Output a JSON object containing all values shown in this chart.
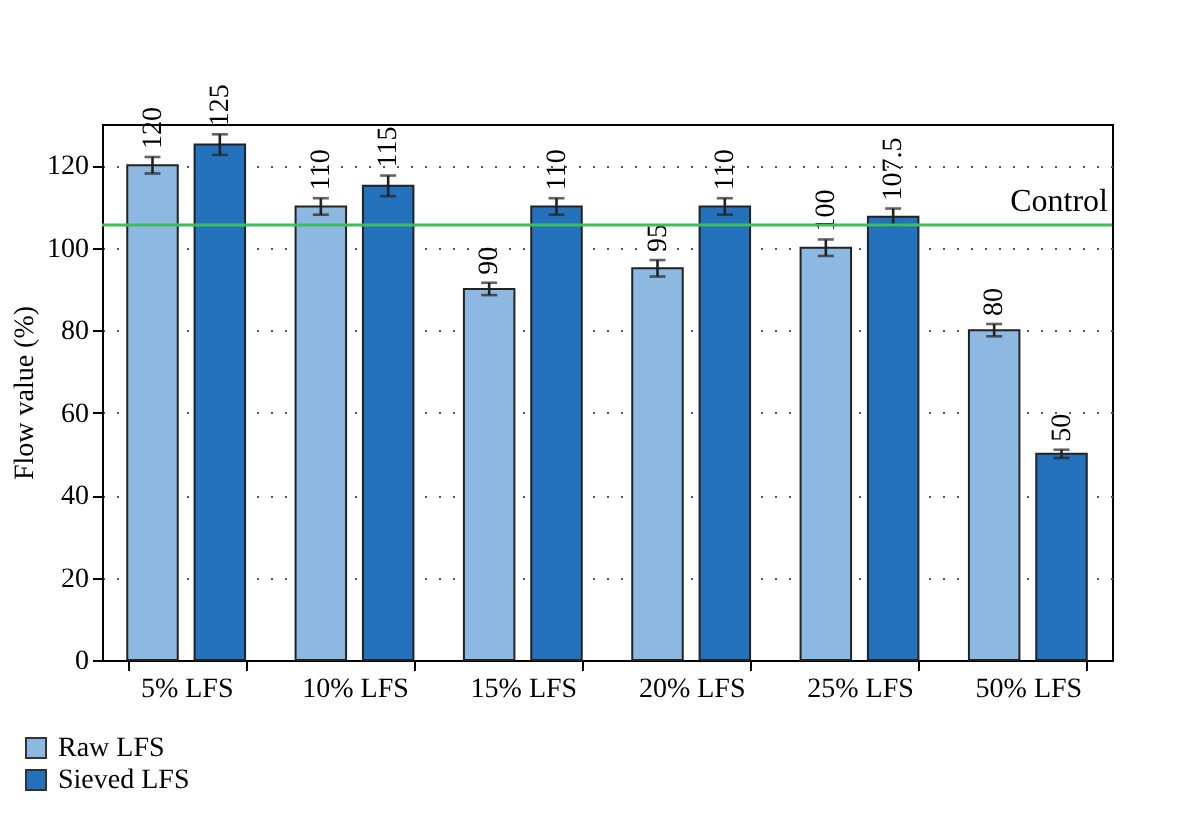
{
  "chart_data": {
    "type": "bar",
    "ylabel": "Flow value (%)",
    "categories": [
      "5% LFS",
      "10% LFS",
      "15% LFS",
      "20% LFS",
      "25% LFS",
      "50% LFS"
    ],
    "series": [
      {
        "name": "Raw LFS",
        "color": "#8db8e2",
        "values": [
          120,
          110,
          90,
          95,
          100,
          80
        ],
        "errors": [
          2,
          2,
          1.5,
          2,
          2,
          1.5
        ]
      },
      {
        "name": "Sieved LFS",
        "color": "#2372bb",
        "values": [
          125,
          115,
          110,
          110,
          107.5,
          50
        ],
        "errors": [
          2.5,
          2.5,
          2,
          2,
          2,
          1
        ]
      }
    ],
    "ylim": [
      0,
      130
    ],
    "yticks": [
      0,
      20,
      40,
      60,
      80,
      100,
      120
    ],
    "grid": "y",
    "legend": "bottom left",
    "data_labels": true,
    "ref_lines": [
      {
        "axis": "y",
        "value": 105.5,
        "label": "Control",
        "color": "#3cbf5a"
      }
    ]
  }
}
